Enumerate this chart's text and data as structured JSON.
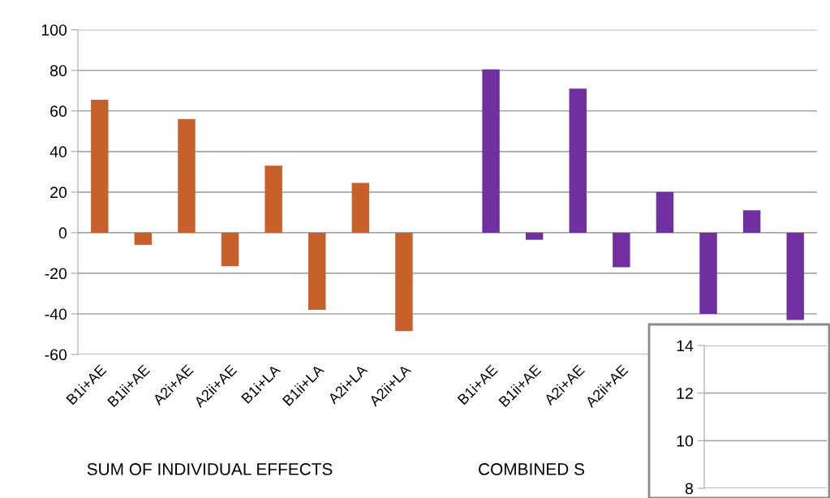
{
  "chart_data": [
    {
      "type": "bar",
      "categories": [
        "B1i+AE",
        "B1ii+AE",
        "A2i+AE",
        "A2ii+AE",
        "B1i+LA",
        "B1ii+LA",
        "A2i+LA",
        "A2ii+LA",
        null,
        "B1i+AE",
        "B1ii+AE",
        "A2i+AE",
        "A2ii+AE",
        null,
        null,
        null,
        null
      ],
      "series": [
        {
          "colors": [
            "#c8602c",
            "#c8602c",
            "#c8602c",
            "#c8602c",
            "#c8602c",
            "#c8602c",
            "#c8602c",
            "#c8602c",
            null,
            "#7030a0",
            "#7030a0",
            "#7030a0",
            "#7030a0",
            "#7030a0",
            "#7030a0",
            "#7030a0",
            "#7030a0"
          ],
          "values": [
            65.5,
            -6,
            56,
            -16.5,
            33,
            -38,
            24.5,
            -48.5,
            null,
            80.5,
            -3.5,
            71,
            -17,
            20,
            -40,
            11,
            -43
          ]
        }
      ],
      "ylim": [
        -60,
        100
      ],
      "yticks": [
        -60,
        -40,
        -20,
        0,
        20,
        40,
        60,
        80,
        100
      ],
      "grid": "y",
      "annotations": [
        "SUM OF INDIVIDUAL EFFECTS",
        "COMBINED S"
      ]
    },
    {
      "type": "bar",
      "categories": [
        null
      ],
      "series": [
        {
          "values": [
            null
          ]
        }
      ],
      "ylim": [
        8,
        14
      ],
      "yticks": [
        8,
        10,
        12,
        14
      ],
      "grid": "y",
      "tick_labels": "y"
    }
  ]
}
